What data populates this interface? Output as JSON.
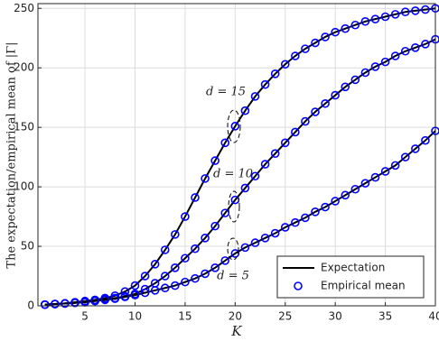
{
  "chart_data": {
    "type": "line",
    "xlabel": "K",
    "ylabel": "The expectation/empirical mean of |Γ|",
    "x": [
      1,
      2,
      3,
      4,
      5,
      6,
      7,
      8,
      9,
      10,
      11,
      12,
      13,
      14,
      15,
      16,
      17,
      18,
      19,
      20,
      21,
      22,
      23,
      24,
      25,
      26,
      27,
      28,
      29,
      30,
      31,
      32,
      33,
      34,
      35,
      36,
      37,
      38,
      39,
      40
    ],
    "curves": [
      {
        "label": "d = 15",
        "values": [
          1,
          1.5,
          2,
          3,
          4,
          5,
          6.5,
          8.5,
          12,
          17,
          25,
          35,
          47,
          60,
          75,
          91,
          107,
          122,
          137,
          151,
          164,
          176,
          186,
          195,
          203,
          210,
          216,
          221,
          226,
          230,
          233,
          236,
          239,
          241,
          243,
          245,
          247,
          248,
          249,
          250
        ]
      },
      {
        "label": "d = 10",
        "values": [
          1,
          1.5,
          2,
          2.5,
          3.5,
          4.5,
          5.5,
          6.5,
          8,
          10,
          14,
          19,
          25,
          32,
          40,
          48,
          57,
          67,
          78,
          89,
          99,
          109,
          119,
          128,
          137,
          146,
          155,
          163,
          170,
          177,
          184,
          190,
          196,
          201,
          205,
          210,
          214,
          217,
          220,
          224
        ]
      },
      {
        "label": "d = 5",
        "values": [
          1,
          1.5,
          2,
          2.5,
          3,
          4,
          5,
          6,
          7.5,
          9,
          11,
          13,
          15,
          17,
          20,
          23,
          27,
          32,
          38,
          44,
          49,
          53,
          57,
          61,
          66,
          70,
          74,
          79,
          83,
          88,
          93,
          98,
          103,
          108,
          113,
          118,
          125,
          132,
          139,
          147
        ]
      }
    ],
    "legend": [
      {
        "name": "Expectation",
        "color": "#000000"
      },
      {
        "name": "Empirical mean",
        "color": "#0000ff"
      }
    ],
    "xlim": [
      0.3,
      40
    ],
    "ylim": [
      0,
      254
    ],
    "xticks": [
      5,
      10,
      15,
      20,
      25,
      30,
      35,
      40
    ],
    "yticks": [
      0,
      50,
      100,
      150,
      200,
      250
    ],
    "grid": true
  }
}
